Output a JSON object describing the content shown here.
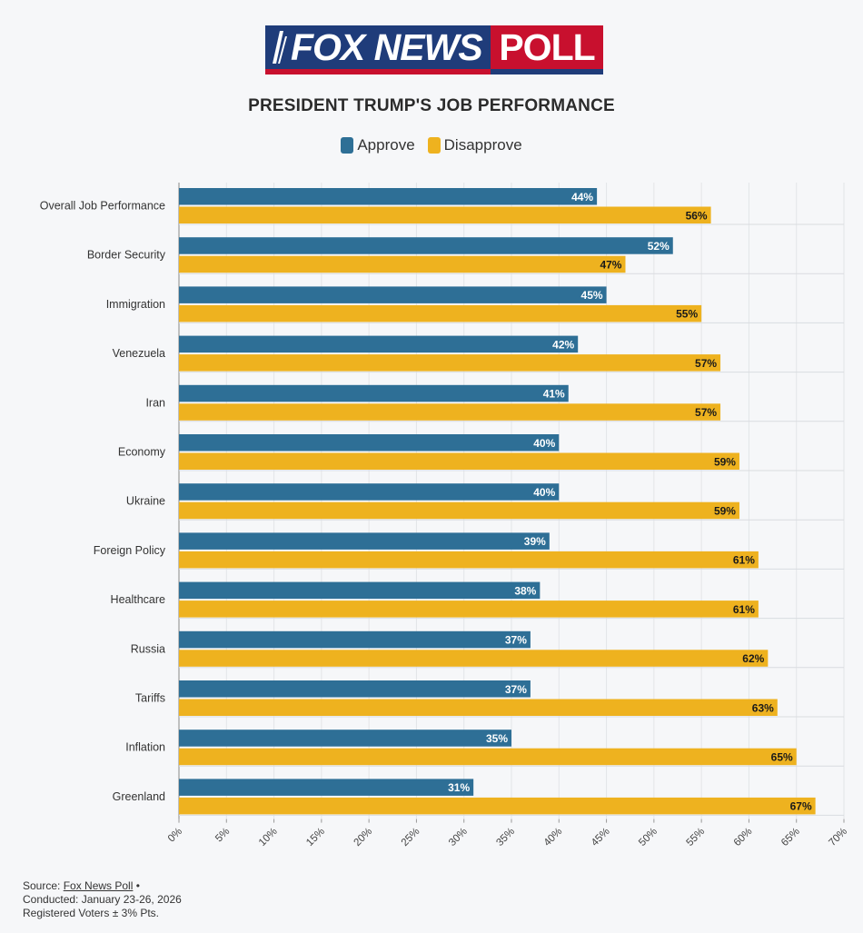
{
  "logo": {
    "brand": "FOX NEWS",
    "poll": "POLL",
    "brand_color": "#1f3c7a",
    "accent_color": "#c8102e"
  },
  "chart_data": {
    "type": "bar",
    "orientation": "horizontal",
    "title": "PRESIDENT TRUMP'S JOB PERFORMANCE",
    "categories": [
      "Overall Job Performance",
      "Border Security",
      "Immigration",
      "Venezuela",
      "Iran",
      "Economy",
      "Ukraine",
      "Foreign Policy",
      "Healthcare",
      "Russia",
      "Tariffs",
      "Inflation",
      "Greenland"
    ],
    "series": [
      {
        "name": "Approve",
        "color": "#2e6f96",
        "values": [
          44,
          52,
          45,
          42,
          41,
          40,
          40,
          39,
          38,
          37,
          37,
          35,
          31
        ]
      },
      {
        "name": "Disapprove",
        "color": "#eeb21f",
        "values": [
          56,
          47,
          55,
          57,
          57,
          59,
          59,
          61,
          61,
          62,
          63,
          65,
          67
        ]
      }
    ],
    "xlim": [
      0,
      70
    ],
    "xticks": [
      "0%",
      "5%",
      "10%",
      "15%",
      "20%",
      "25%",
      "30%",
      "35%",
      "40%",
      "45%",
      "50%",
      "55%",
      "60%",
      "65%",
      "70%"
    ],
    "value_suffix": "%",
    "legend_position": "top-center",
    "grid": true
  },
  "source": {
    "label": "Source:",
    "link_text": "Fox News Poll",
    "separator": "•",
    "conducted": "Conducted: January 23-26, 2026",
    "sample": "Registered Voters ± 3% Pts."
  }
}
